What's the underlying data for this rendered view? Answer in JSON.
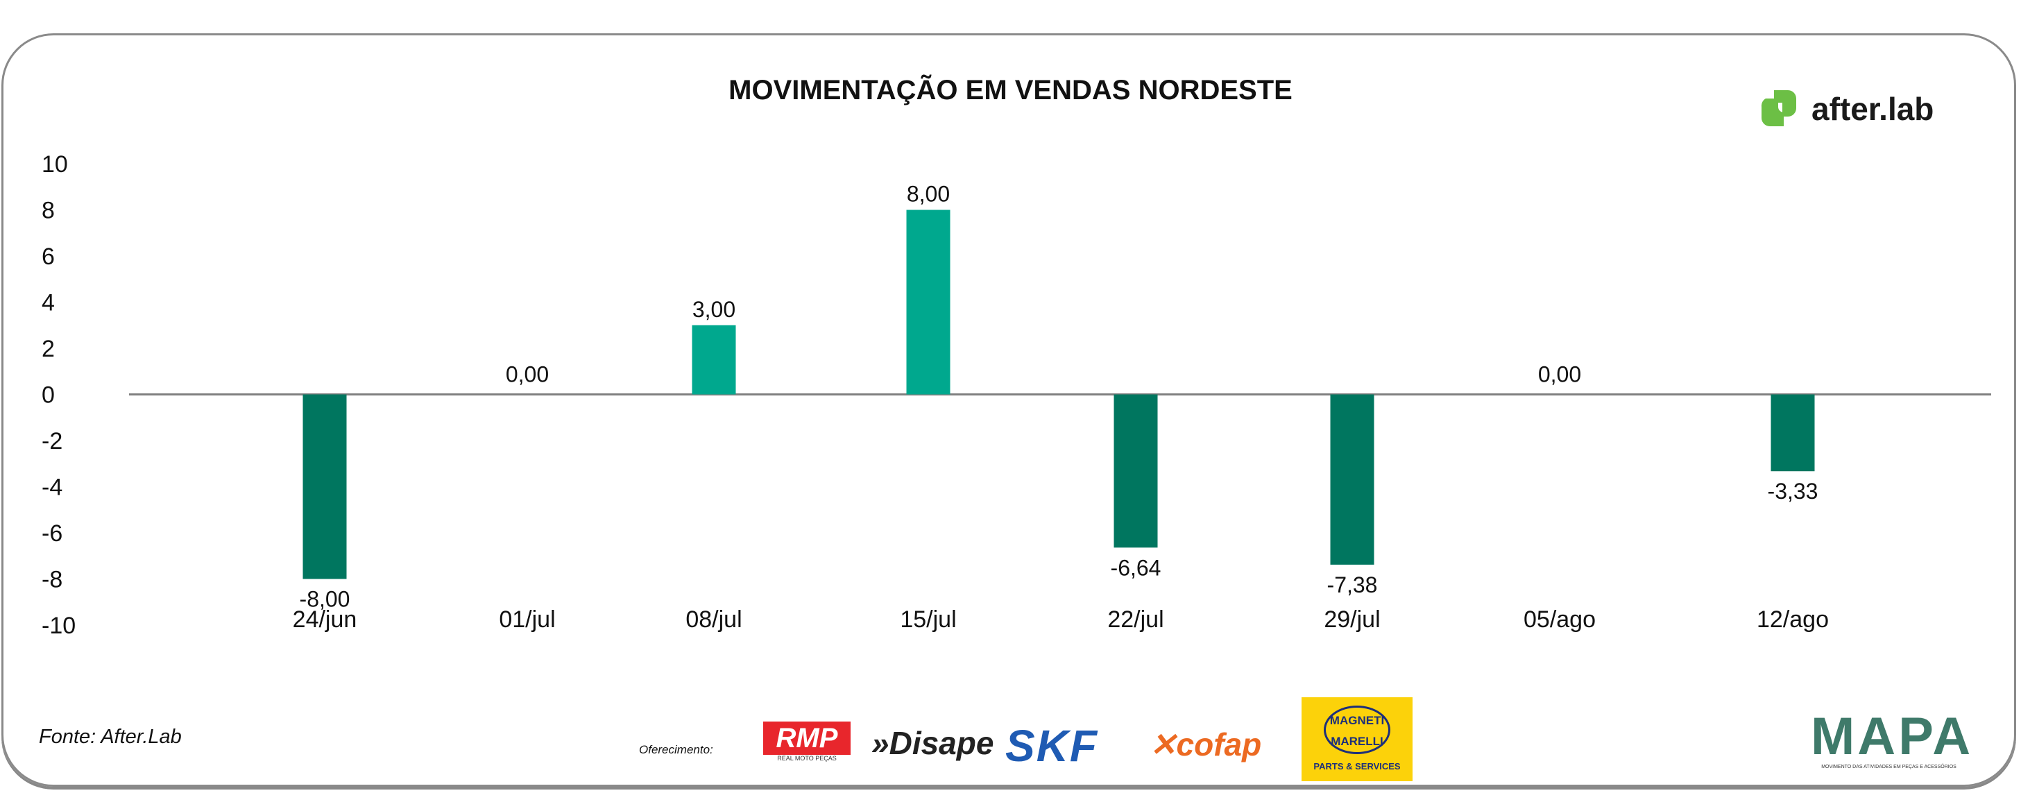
{
  "chart_data": {
    "type": "bar",
    "title": "MOVIMENTAÇÃO EM VENDAS NORDESTE",
    "categories": [
      "24/jun",
      "01/jul",
      "08/jul",
      "15/jul",
      "22/jul",
      "29/jul",
      "05/ago",
      "12/ago"
    ],
    "values": [
      -8.0,
      0.0,
      3.0,
      8.0,
      -6.64,
      -7.38,
      0.0,
      -3.33
    ],
    "data_labels": [
      "-8,00",
      "0,00",
      "3,00",
      "8,00",
      "-6,64",
      "-7,38",
      "0,00",
      "-3,33"
    ],
    "ylim": [
      -10,
      10
    ],
    "yticks": [
      "10",
      "8",
      "6",
      "4",
      "2",
      "0",
      "-2",
      "-4",
      "-6",
      "-8",
      "-10"
    ],
    "xlabel": "",
    "ylabel": "",
    "grid": false,
    "colors": {
      "positive": "#00a88e",
      "negative": "#00765f"
    }
  },
  "brand": {
    "name": "after.lab",
    "color": "#6cbf45"
  },
  "footer": {
    "source": "Fonte: After.Lab",
    "sponsor_label": "Oferecimento:",
    "sponsors": [
      "RMP",
      "Disape",
      "SKF",
      "cofap",
      "MAGNETI MARELLI"
    ],
    "sponsor_sub": {
      "rmp": "REAL MOTO PEÇAS",
      "magneti": "PARTS & SERVICES"
    },
    "mapa": "MAPA",
    "mapa_sub": "MOVIMENTO DAS ATIVIDADES EM PEÇAS E ACESSÓRIOS"
  }
}
